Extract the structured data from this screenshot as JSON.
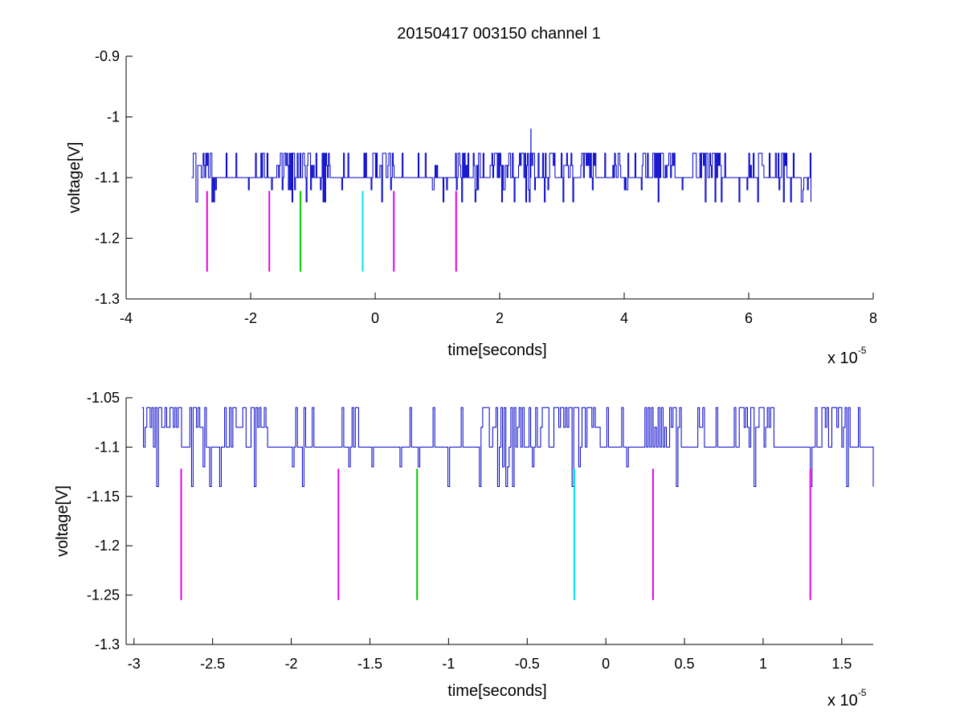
{
  "figure_title": "20150417 003150 channel 1",
  "colors": {
    "trace": "#0000c8",
    "magenta": "#e600e6",
    "green": "#00cc00",
    "cyan": "#00e6e6",
    "axis": "#000000"
  },
  "chart_data": [
    {
      "type": "line",
      "title": "20150417 003150 channel 1",
      "xlabel": "time[seconds]",
      "ylabel": "voltage[V]",
      "x_multiplier_base": "x 10",
      "x_multiplier_exp": "-5",
      "xlim": [
        -4,
        8
      ],
      "ylim": [
        -1.3,
        -0.9
      ],
      "xticks": [
        -4,
        -2,
        0,
        2,
        4,
        6,
        8
      ],
      "xtick_labels": [
        "-4",
        "-2",
        "0",
        "2",
        "4",
        "6",
        "8"
      ],
      "yticks": [
        -1.3,
        -1.2,
        -1.1,
        -1,
        -0.9
      ],
      "ytick_labels": [
        "-1.3",
        "-1.2",
        "-1.1",
        "-1",
        "-0.9"
      ],
      "grid": false,
      "series": [
        {
          "role": "trace",
          "x_range": [
            -2.95,
            7.0
          ],
          "baseline": -1.1,
          "levels": [
            -1.06,
            -1.08,
            -1.1,
            -1.12,
            -1.14
          ],
          "max_spike": {
            "x": 2.5,
            "y": -1.02
          },
          "color": "#0000c8"
        }
      ],
      "markers": [
        {
          "x": -2.7,
          "y_top": -1.122,
          "y_bottom": -1.255,
          "color": "#e600e6"
        },
        {
          "x": -1.7,
          "y_top": -1.122,
          "y_bottom": -1.255,
          "color": "#e600e6"
        },
        {
          "x": -1.2,
          "y_top": -1.122,
          "y_bottom": -1.255,
          "color": "#00cc00"
        },
        {
          "x": -0.2,
          "y_top": -1.122,
          "y_bottom": -1.255,
          "color": "#00e6e6"
        },
        {
          "x": 0.3,
          "y_top": -1.122,
          "y_bottom": -1.255,
          "color": "#e600e6"
        },
        {
          "x": 1.3,
          "y_top": -1.122,
          "y_bottom": -1.255,
          "color": "#e600e6"
        }
      ]
    },
    {
      "type": "line",
      "xlabel": "time[seconds]",
      "ylabel": "voltage[V]",
      "x_multiplier_base": "x 10",
      "x_multiplier_exp": "-5",
      "xlim": [
        -3.05,
        1.7
      ],
      "ylim": [
        -1.3,
        -1.05
      ],
      "xticks": [
        -3,
        -2.5,
        -2,
        -1.5,
        -1,
        -0.5,
        0,
        0.5,
        1,
        1.5
      ],
      "xtick_labels": [
        "-3",
        "-2.5",
        "-2",
        "-1.5",
        "-1",
        "-0.5",
        "0",
        "0.5",
        "1",
        "1.5"
      ],
      "yticks": [
        -1.3,
        -1.25,
        -1.2,
        -1.15,
        -1.1,
        -1.05
      ],
      "ytick_labels": [
        "-1.3",
        "-1.25",
        "-1.2",
        "-1.15",
        "-1.1",
        "-1.05"
      ],
      "grid": false,
      "series": [
        {
          "role": "trace",
          "x_range": [
            -2.95,
            1.7
          ],
          "baseline": -1.1,
          "levels": [
            -1.06,
            -1.08,
            -1.1,
            -1.12,
            -1.14
          ],
          "end_point": {
            "x": 1.7,
            "y": -1.14
          },
          "color": "#0000c8"
        }
      ],
      "markers": [
        {
          "x": -2.7,
          "y_top": -1.122,
          "y_bottom": -1.255,
          "color": "#e600e6"
        },
        {
          "x": -1.7,
          "y_top": -1.122,
          "y_bottom": -1.255,
          "color": "#e600e6"
        },
        {
          "x": -1.2,
          "y_top": -1.122,
          "y_bottom": -1.255,
          "color": "#00cc00"
        },
        {
          "x": -0.2,
          "y_top": -1.122,
          "y_bottom": -1.255,
          "color": "#00e6e6"
        },
        {
          "x": 0.3,
          "y_top": -1.122,
          "y_bottom": -1.255,
          "color": "#e600e6"
        },
        {
          "x": 1.3,
          "y_top": -1.122,
          "y_bottom": -1.255,
          "color": "#e600e6"
        }
      ]
    }
  ]
}
